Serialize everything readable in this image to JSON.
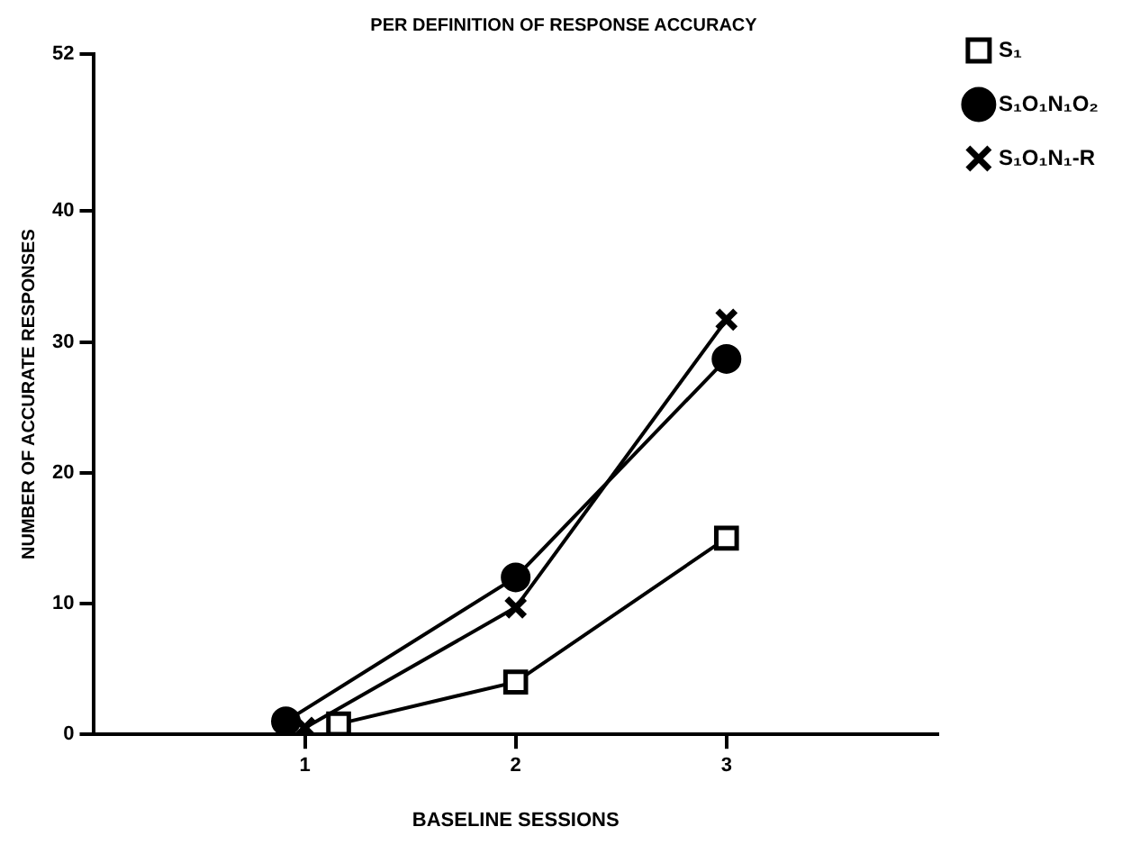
{
  "chart_data": {
    "type": "line",
    "title": "PER DEFINITION OF RESPONSE ACCURACY",
    "xlabel": "BASELINE SESSIONS",
    "ylabel": "NUMBER OF ACCURATE RESPONSES",
    "xlim": [
      0,
      4
    ],
    "xticks": [
      1,
      2,
      3
    ],
    "ylim": [
      0,
      52
    ],
    "yticks": [
      0,
      10,
      20,
      30,
      40,
      52
    ],
    "grid": false,
    "legend": "top right",
    "series": [
      {
        "name": "S₁",
        "color": "#000000",
        "marker": "square",
        "x": [
          1.16,
          2,
          3
        ],
        "values": [
          0.8,
          4,
          15
        ]
      },
      {
        "name": "S₁O₁N₁O₂",
        "color": "#000000",
        "marker": "circle",
        "x": [
          0.91,
          2,
          3
        ],
        "values": [
          1,
          12,
          28.7
        ]
      },
      {
        "name": "S₁O₁N₁-R",
        "color": "#000000",
        "marker": "cross",
        "x": [
          1,
          2,
          3
        ],
        "values": [
          0.5,
          9.7,
          31.7
        ]
      }
    ]
  }
}
